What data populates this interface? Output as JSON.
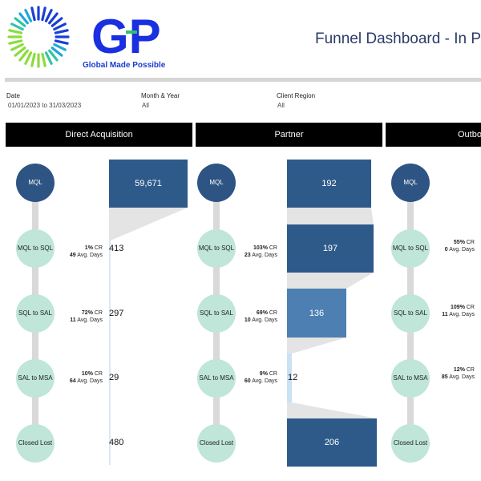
{
  "brand": {
    "mark": "GP",
    "tagline": "Global Made Possible",
    "ring_colors": [
      "#1b3fd6",
      "#1fa8d8",
      "#33c4a8",
      "#8bdc3c"
    ],
    "mark_color": "#1a2fe0",
    "plus_color": "#2fc16e"
  },
  "title": "Funnel Dashboard - In Per",
  "filters": [
    {
      "label": "Date",
      "value": "01/01/2023 to 31/03/2023"
    },
    {
      "label": "Month & Year",
      "value": "All"
    },
    {
      "label": "Client Region",
      "value": "All"
    }
  ],
  "stages": [
    "MQL",
    "MQL to SQL",
    "SQL to SAL",
    "SAL to MSA",
    "Closed Lost"
  ],
  "colors": {
    "bar_dark": "#2e5a8a",
    "bar_mid": "#4d7fb3",
    "bar_light": "#c9e2f3",
    "node_dark": "#2e5484",
    "node_light": "#bfe6d8",
    "funnel_fill": "#e4e4e4"
  },
  "columns": [
    {
      "title": "Direct Acquisition",
      "values": [
        "59,671",
        "413",
        "297",
        "29",
        "480"
      ],
      "metrics": [
        {
          "cr": "1%",
          "cr_label": "CR",
          "days": "49",
          "days_label": "Avg. Days"
        },
        {
          "cr": "72%",
          "cr_label": "CR",
          "days": "11",
          "days_label": "Avg. Days"
        },
        {
          "cr": "10%",
          "cr_label": "CR",
          "days": "64",
          "days_label": "Avg. Days"
        }
      ]
    },
    {
      "title": "Partner",
      "values": [
        "192",
        "197",
        "136",
        "12",
        "206"
      ],
      "metrics": [
        {
          "cr": "103%",
          "cr_label": "CR",
          "days": "23",
          "days_label": "Avg. Days"
        },
        {
          "cr": "69%",
          "cr_label": "CR",
          "days": "10",
          "days_label": "Avg. Days"
        },
        {
          "cr": "9%",
          "cr_label": "CR",
          "days": "60",
          "days_label": "Avg. Days"
        }
      ]
    },
    {
      "title": "Outbo",
      "values": [],
      "metrics": [
        {
          "cr": "55%",
          "cr_label": "CR",
          "days": "0",
          "days_label": "Avg. Days"
        },
        {
          "cr": "109%",
          "cr_label": "CR",
          "days": "11",
          "days_label": "Avg. Days"
        },
        {
          "cr": "12%",
          "cr_label": "CR",
          "days": "85",
          "days_label": "Avg. Days"
        }
      ]
    }
  ]
}
